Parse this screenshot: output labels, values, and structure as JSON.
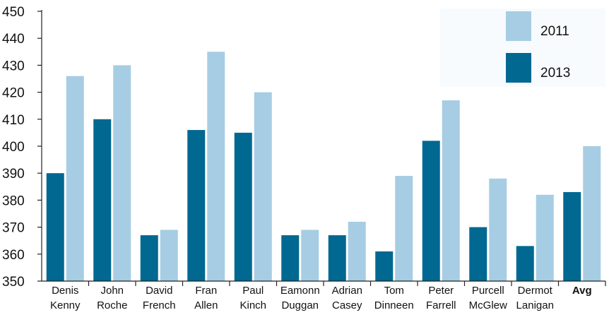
{
  "chart_data": {
    "type": "bar",
    "title": "",
    "xlabel": "",
    "ylabel": "",
    "ylim": [
      350,
      450
    ],
    "yticks": [
      350,
      360,
      370,
      380,
      390,
      400,
      410,
      420,
      430,
      440,
      450
    ],
    "grid": false,
    "legend_position": "top-right",
    "categories": [
      [
        "Denis",
        "Kenny"
      ],
      [
        "John",
        "Roche"
      ],
      [
        "David",
        "French"
      ],
      [
        "Fran",
        "Allen"
      ],
      [
        "Paul",
        "Kinch"
      ],
      [
        "Eamonn",
        "Duggan"
      ],
      [
        "Adrian",
        "Casey"
      ],
      [
        "Tom",
        "Dinneen"
      ],
      [
        "Peter",
        "Farrell"
      ],
      [
        "Purcell",
        "McGlew"
      ],
      [
        "Dermot",
        "Lanigan"
      ],
      [
        "Avg"
      ]
    ],
    "bold_categories": [
      "Avg"
    ],
    "series": [
      {
        "name": "2013",
        "color": "#006891",
        "values": [
          390,
          410,
          367,
          406,
          405,
          367,
          367,
          361,
          402,
          370,
          363,
          383
        ]
      },
      {
        "name": "2011",
        "color": "#a6cde3",
        "values": [
          426,
          430,
          369,
          435,
          420,
          369,
          372,
          389,
          417,
          388,
          382,
          400
        ]
      }
    ],
    "legend": [
      {
        "label": "2011",
        "color": "#a6cde3"
      },
      {
        "label": "2013",
        "color": "#006891"
      }
    ],
    "legend_background": "#f7fbfd",
    "axis_color": "#222222"
  }
}
